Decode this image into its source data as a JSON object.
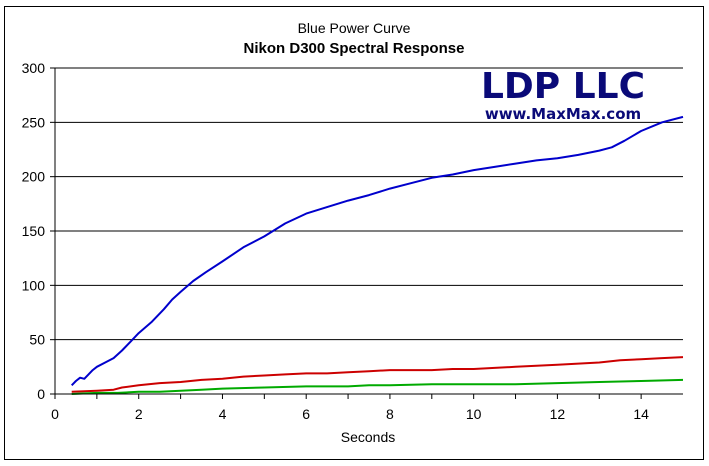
{
  "chart_data": {
    "type": "line",
    "title": "Blue Power Curve",
    "subtitle": "Nikon D300 Spectral Response",
    "xlabel": "Seconds",
    "ylabel": "",
    "xlim": [
      0,
      15
    ],
    "ylim": [
      0,
      300
    ],
    "xticks": [
      0,
      2,
      4,
      6,
      8,
      10,
      12,
      14
    ],
    "yticks": [
      0,
      50,
      100,
      150,
      200,
      250,
      300
    ],
    "grid": "horizontal",
    "legend": "none",
    "annotations": [
      "LDP LLC",
      "www.MaxMax.com"
    ],
    "series": [
      {
        "color": "#0000cc",
        "x": [
          0.4,
          0.5,
          0.6,
          0.7,
          0.8,
          0.9,
          1.0,
          1.2,
          1.4,
          1.6,
          1.8,
          2.0,
          2.3,
          2.6,
          2.8,
          3.0,
          3.3,
          3.6,
          4.0,
          4.5,
          5.0,
          5.5,
          6.0,
          6.5,
          7.0,
          7.5,
          8.0,
          8.5,
          9.0,
          9.5,
          10.0,
          10.5,
          11.0,
          11.5,
          12.0,
          12.5,
          13.0,
          13.3,
          13.6,
          14.0,
          14.5,
          15.0
        ],
        "y": [
          8,
          12,
          15,
          14,
          18,
          22,
          25,
          29,
          33,
          40,
          48,
          56,
          66,
          78,
          87,
          94,
          104,
          112,
          122,
          135,
          145,
          157,
          166,
          172,
          178,
          183,
          189,
          194,
          199,
          202,
          206,
          209,
          212,
          215,
          217,
          220,
          224,
          227,
          233,
          242,
          250,
          255
        ]
      },
      {
        "color": "#cc0000",
        "x": [
          0.4,
          1.0,
          1.4,
          1.6,
          2.0,
          2.5,
          3.0,
          3.5,
          4.0,
          4.5,
          5.0,
          5.5,
          6.0,
          6.5,
          7.0,
          7.5,
          8.0,
          8.5,
          9.0,
          9.5,
          10.0,
          10.5,
          11.0,
          11.5,
          12.0,
          12.5,
          13.0,
          13.5,
          14.0,
          14.5,
          15.0
        ],
        "y": [
          2,
          3,
          4,
          6,
          8,
          10,
          11,
          13,
          14,
          16,
          17,
          18,
          19,
          19,
          20,
          21,
          22,
          22,
          22,
          23,
          23,
          24,
          25,
          26,
          27,
          28,
          29,
          31,
          32,
          33,
          34
        ]
      },
      {
        "color": "#00aa00",
        "x": [
          0.4,
          1.0,
          1.5,
          2.0,
          2.5,
          3.0,
          3.5,
          4.0,
          5.0,
          6.0,
          7.0,
          7.5,
          8.0,
          9.0,
          10.0,
          11.0,
          12.0,
          13.0,
          14.0,
          15.0
        ],
        "y": [
          0,
          1,
          1,
          2,
          2,
          3,
          4,
          5,
          6,
          7,
          7,
          8,
          8,
          9,
          9,
          9,
          10,
          11,
          12,
          13
        ]
      }
    ]
  }
}
